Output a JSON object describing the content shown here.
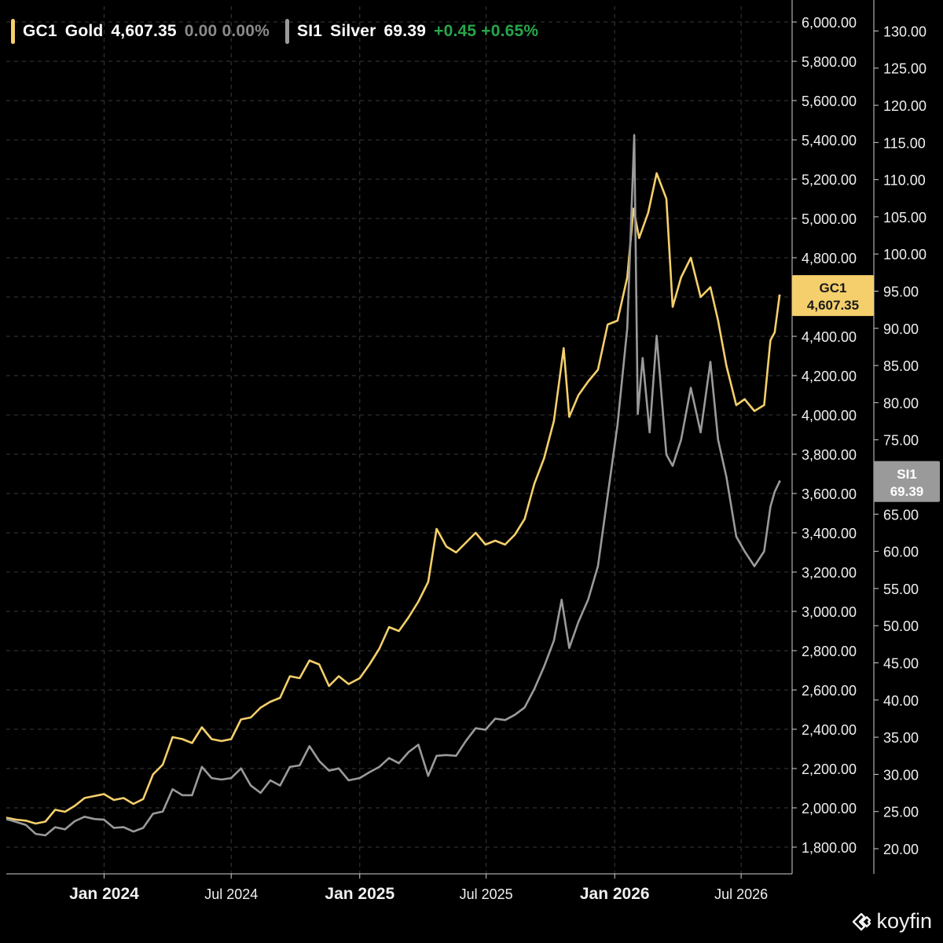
{
  "legend": {
    "gold": {
      "symbol": "GC1",
      "name": "Gold",
      "price": "4,607.35",
      "change": "0.00",
      "change_pct": "0.00%"
    },
    "silver": {
      "symbol": "SI1",
      "name": "Silver",
      "price": "69.39",
      "change": "+0.45",
      "change_pct": "+0.65%"
    }
  },
  "colors": {
    "gold": "#f5cf6b",
    "silver": "#9a9a9a",
    "positive": "#26a64a",
    "neutral": "#8a8a8a",
    "grid": "#3a3a3a",
    "axis": "#d0d0d0"
  },
  "brand": {
    "name": "koyfin",
    "icon": "koyfin-logo-icon"
  },
  "chart_data": {
    "type": "line",
    "title": "",
    "x_ticks": [
      "Jan 2024",
      "Jul 2024",
      "Jan 2025",
      "Jul 2025",
      "Jan 2026",
      "Jul 2026"
    ],
    "x_tick_dates": [
      "2024-01-01",
      "2024-07-01",
      "2025-01-01",
      "2025-07-01",
      "2026-01-01",
      "2026-07-01"
    ],
    "x_range": [
      "2023-08-14",
      "2026-08-25"
    ],
    "grid": true,
    "left_axis": {
      "series": "Gold",
      "ticks": [
        "6,000.00",
        "5,800.00",
        "5,600.00",
        "5,400.00",
        "5,200.00",
        "5,000.00",
        "4,800.00",
        "4,600.00",
        "4,400.00",
        "4,200.00",
        "4,000.00",
        "3,800.00",
        "3,600.00",
        "3,400.00",
        "3,200.00",
        "3,000.00",
        "2,800.00",
        "2,600.00",
        "2,400.00",
        "2,200.00",
        "2,000.00",
        "1,800.00"
      ],
      "range": [
        1700,
        6050
      ]
    },
    "right_axis": {
      "series": "Silver",
      "ticks": [
        "130.00",
        "125.00",
        "120.00",
        "115.00",
        "110.00",
        "105.00",
        "100.00",
        "95.00",
        "90.00",
        "85.00",
        "80.00",
        "75.00",
        "70.00",
        "65.00",
        "60.00",
        "55.00",
        "50.00",
        "45.00",
        "40.00",
        "35.00",
        "30.00",
        "25.00",
        "20.00"
      ],
      "range": [
        17.5,
        133
      ]
    },
    "series": [
      {
        "name": "GC1 Gold",
        "axis": "left",
        "last_label": "GC1",
        "last_value_label": "4,607.35",
        "points": [
          [
            "2023-08-14",
            1950
          ],
          [
            "2023-08-28",
            1940
          ],
          [
            "2023-09-11",
            1935
          ],
          [
            "2023-09-25",
            1920
          ],
          [
            "2023-10-09",
            1930
          ],
          [
            "2023-10-23",
            1990
          ],
          [
            "2023-11-06",
            1980
          ],
          [
            "2023-11-20",
            2010
          ],
          [
            "2023-12-04",
            2050
          ],
          [
            "2023-12-18",
            2060
          ],
          [
            "2024-01-01",
            2070
          ],
          [
            "2024-01-15",
            2040
          ],
          [
            "2024-01-29",
            2050
          ],
          [
            "2024-02-12",
            2020
          ],
          [
            "2024-02-26",
            2045
          ],
          [
            "2024-03-11",
            2170
          ],
          [
            "2024-03-25",
            2220
          ],
          [
            "2024-04-08",
            2360
          ],
          [
            "2024-04-22",
            2350
          ],
          [
            "2024-05-06",
            2330
          ],
          [
            "2024-05-20",
            2410
          ],
          [
            "2024-06-03",
            2350
          ],
          [
            "2024-06-17",
            2340
          ],
          [
            "2024-07-01",
            2350
          ],
          [
            "2024-07-15",
            2450
          ],
          [
            "2024-07-29",
            2460
          ],
          [
            "2024-08-12",
            2510
          ],
          [
            "2024-08-26",
            2540
          ],
          [
            "2024-09-09",
            2560
          ],
          [
            "2024-09-23",
            2670
          ],
          [
            "2024-10-07",
            2660
          ],
          [
            "2024-10-21",
            2750
          ],
          [
            "2024-11-04",
            2730
          ],
          [
            "2024-11-18",
            2620
          ],
          [
            "2024-12-02",
            2670
          ],
          [
            "2024-12-16",
            2630
          ],
          [
            "2025-01-01",
            2660
          ],
          [
            "2025-01-15",
            2730
          ],
          [
            "2025-01-29",
            2810
          ],
          [
            "2025-02-12",
            2920
          ],
          [
            "2025-02-26",
            2900
          ],
          [
            "2025-03-12",
            2970
          ],
          [
            "2025-03-26",
            3050
          ],
          [
            "2025-04-09",
            3150
          ],
          [
            "2025-04-21",
            3420
          ],
          [
            "2025-05-05",
            3330
          ],
          [
            "2025-05-19",
            3300
          ],
          [
            "2025-06-02",
            3350
          ],
          [
            "2025-06-16",
            3400
          ],
          [
            "2025-06-30",
            3340
          ],
          [
            "2025-07-14",
            3360
          ],
          [
            "2025-07-28",
            3340
          ],
          [
            "2025-08-11",
            3390
          ],
          [
            "2025-08-25",
            3470
          ],
          [
            "2025-09-08",
            3650
          ],
          [
            "2025-09-22",
            3780
          ],
          [
            "2025-10-06",
            3970
          ],
          [
            "2025-10-20",
            4340
          ],
          [
            "2025-10-28",
            3990
          ],
          [
            "2025-11-10",
            4100
          ],
          [
            "2025-11-24",
            4170
          ],
          [
            "2025-12-08",
            4230
          ],
          [
            "2025-12-22",
            4460
          ],
          [
            "2026-01-05",
            4480
          ],
          [
            "2026-01-19",
            4700
          ],
          [
            "2026-01-28",
            5050
          ],
          [
            "2026-02-05",
            4900
          ],
          [
            "2026-02-18",
            5030
          ],
          [
            "2026-03-02",
            5230
          ],
          [
            "2026-03-16",
            5100
          ],
          [
            "2026-03-25",
            4550
          ],
          [
            "2026-04-06",
            4700
          ],
          [
            "2026-04-20",
            4800
          ],
          [
            "2026-05-04",
            4600
          ],
          [
            "2026-05-18",
            4650
          ],
          [
            "2026-05-29",
            4480
          ],
          [
            "2026-06-10",
            4250
          ],
          [
            "2026-06-24",
            4050
          ],
          [
            "2026-07-06",
            4080
          ],
          [
            "2026-07-20",
            4020
          ],
          [
            "2026-08-03",
            4050
          ],
          [
            "2026-08-12",
            4380
          ],
          [
            "2026-08-18",
            4420
          ],
          [
            "2026-08-25",
            4607.35
          ]
        ]
      },
      {
        "name": "SI1 Silver",
        "axis": "right",
        "last_label": "SI1",
        "last_value_label": "69.39",
        "points": [
          [
            "2023-08-14",
            24.0
          ],
          [
            "2023-08-28",
            23.6
          ],
          [
            "2023-09-11",
            23.2
          ],
          [
            "2023-09-25",
            22.0
          ],
          [
            "2023-10-09",
            21.8
          ],
          [
            "2023-10-23",
            22.9
          ],
          [
            "2023-11-06",
            22.6
          ],
          [
            "2023-11-20",
            23.7
          ],
          [
            "2023-12-04",
            24.3
          ],
          [
            "2023-12-18",
            24.0
          ],
          [
            "2024-01-01",
            23.9
          ],
          [
            "2024-01-15",
            22.8
          ],
          [
            "2024-01-29",
            22.9
          ],
          [
            "2024-02-12",
            22.3
          ],
          [
            "2024-02-26",
            22.8
          ],
          [
            "2024-03-11",
            24.7
          ],
          [
            "2024-03-25",
            25.0
          ],
          [
            "2024-04-08",
            28.0
          ],
          [
            "2024-04-22",
            27.2
          ],
          [
            "2024-05-06",
            27.2
          ],
          [
            "2024-05-20",
            31.0
          ],
          [
            "2024-06-03",
            29.5
          ],
          [
            "2024-06-17",
            29.3
          ],
          [
            "2024-07-01",
            29.5
          ],
          [
            "2024-07-15",
            30.8
          ],
          [
            "2024-07-29",
            28.5
          ],
          [
            "2024-08-12",
            27.5
          ],
          [
            "2024-08-26",
            29.2
          ],
          [
            "2024-09-09",
            28.5
          ],
          [
            "2024-09-23",
            31.0
          ],
          [
            "2024-10-07",
            31.2
          ],
          [
            "2024-10-21",
            33.8
          ],
          [
            "2024-11-04",
            31.8
          ],
          [
            "2024-11-18",
            30.5
          ],
          [
            "2024-12-02",
            30.8
          ],
          [
            "2024-12-16",
            29.2
          ],
          [
            "2025-01-01",
            29.5
          ],
          [
            "2025-01-15",
            30.3
          ],
          [
            "2025-01-29",
            31.0
          ],
          [
            "2025-02-12",
            32.2
          ],
          [
            "2025-02-26",
            31.5
          ],
          [
            "2025-03-12",
            33.0
          ],
          [
            "2025-03-26",
            34.0
          ],
          [
            "2025-04-09",
            29.8
          ],
          [
            "2025-04-21",
            32.5
          ],
          [
            "2025-05-05",
            32.6
          ],
          [
            "2025-05-19",
            32.5
          ],
          [
            "2025-06-02",
            34.5
          ],
          [
            "2025-06-16",
            36.2
          ],
          [
            "2025-06-30",
            36.0
          ],
          [
            "2025-07-14",
            37.5
          ],
          [
            "2025-07-28",
            37.3
          ],
          [
            "2025-08-11",
            38.0
          ],
          [
            "2025-08-25",
            39.0
          ],
          [
            "2025-09-08",
            41.5
          ],
          [
            "2025-09-22",
            44.5
          ],
          [
            "2025-10-06",
            48.0
          ],
          [
            "2025-10-17",
            53.5
          ],
          [
            "2025-10-28",
            47.0
          ],
          [
            "2025-11-10",
            50.5
          ],
          [
            "2025-11-24",
            53.5
          ],
          [
            "2025-12-08",
            58.0
          ],
          [
            "2025-12-22",
            67.5
          ],
          [
            "2026-01-05",
            77.0
          ],
          [
            "2026-01-19",
            90.0
          ],
          [
            "2026-01-29",
            116.0
          ],
          [
            "2026-02-03",
            78.5
          ],
          [
            "2026-02-10",
            86.0
          ],
          [
            "2026-02-20",
            76.0
          ],
          [
            "2026-03-02",
            89.0
          ],
          [
            "2026-03-16",
            73.0
          ],
          [
            "2026-03-25",
            71.5
          ],
          [
            "2026-04-06",
            75.0
          ],
          [
            "2026-04-20",
            82.0
          ],
          [
            "2026-05-04",
            76.0
          ],
          [
            "2026-05-18",
            85.5
          ],
          [
            "2026-05-29",
            75.0
          ],
          [
            "2026-06-10",
            70.0
          ],
          [
            "2026-06-24",
            62.0
          ],
          [
            "2026-07-06",
            60.0
          ],
          [
            "2026-07-20",
            58.0
          ],
          [
            "2026-08-03",
            60.0
          ],
          [
            "2026-08-12",
            66.0
          ],
          [
            "2026-08-18",
            68.0
          ],
          [
            "2026-08-25",
            69.39
          ]
        ]
      }
    ]
  }
}
